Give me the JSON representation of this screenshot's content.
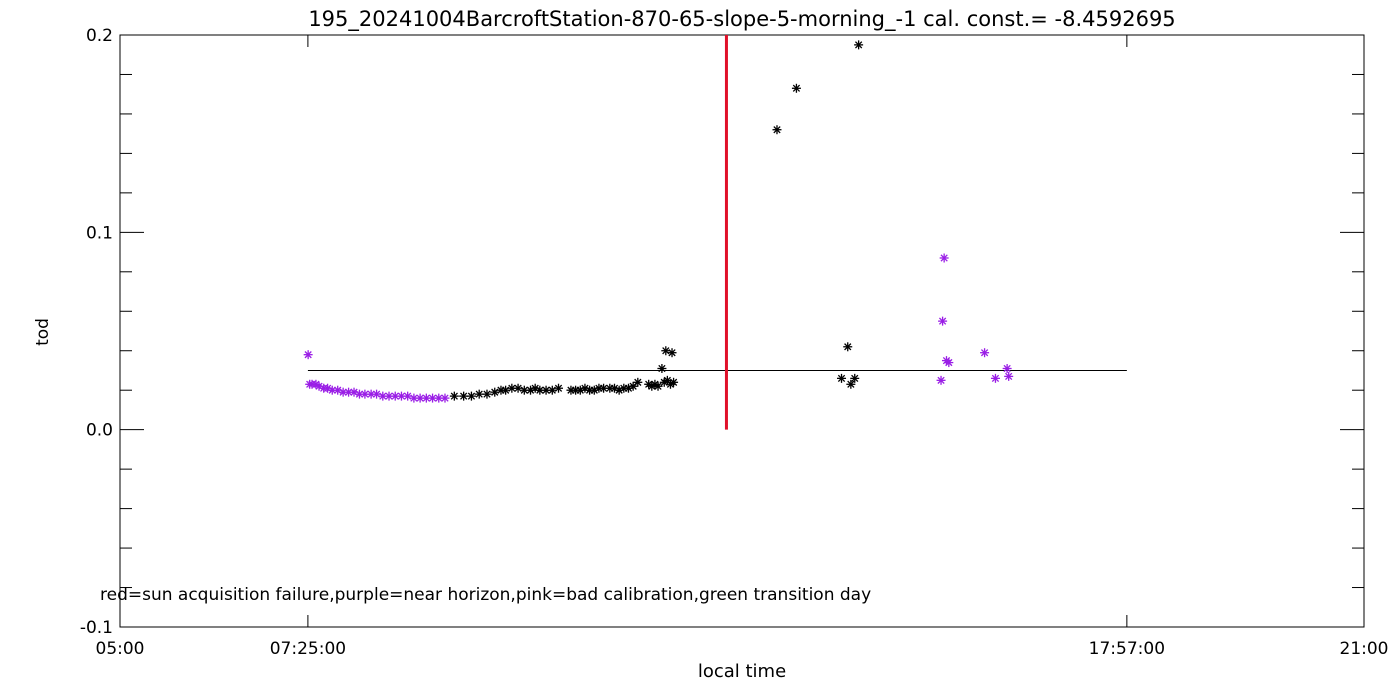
{
  "chart_data": {
    "type": "scatter",
    "title": "195_20241004BarcroftStation-870-65-slope-5-morning_-1 cal. const.= -8.4592695",
    "xlabel": "local time",
    "ylabel": "tod",
    "x_unit": "hours",
    "xlim": [
      5.0,
      21.0
    ],
    "ylim": [
      -0.1,
      0.2
    ],
    "x_tick_labels": [
      "05:00",
      "07:25:00",
      "17:57:00",
      "21:00"
    ],
    "x_tick_values": [
      5.0,
      7.4167,
      17.95,
      21.0
    ],
    "y_tick_labels": [
      "-0.1",
      "0.0",
      "0.1",
      "0.2"
    ],
    "y_tick_values": [
      -0.1,
      0.0,
      0.1,
      0.2
    ],
    "legend_text": "red=sun acquisition failure,purple=near horizon,pink=bad calibration,green transition day",
    "reference_line": {
      "y": 0.03,
      "x_start": 7.4167,
      "x_end": 17.95,
      "color": "#000000"
    },
    "marker_line": {
      "x": 12.8,
      "y_start": 0.0,
      "y_end": 0.2,
      "color": "#e0102a"
    },
    "colors": {
      "black": "#000000",
      "purple": "#9a1ee6"
    },
    "series": [
      {
        "color_key": "purple",
        "points": [
          [
            7.42,
            0.038
          ],
          [
            7.44,
            0.023
          ],
          [
            7.47,
            0.023
          ],
          [
            7.52,
            0.023
          ],
          [
            7.56,
            0.022
          ],
          [
            7.62,
            0.021
          ],
          [
            7.67,
            0.021
          ],
          [
            7.73,
            0.02
          ],
          [
            7.8,
            0.02
          ],
          [
            7.87,
            0.019
          ],
          [
            7.94,
            0.019
          ],
          [
            8.01,
            0.019
          ],
          [
            8.08,
            0.018
          ],
          [
            8.15,
            0.018
          ],
          [
            8.23,
            0.018
          ],
          [
            8.3,
            0.018
          ],
          [
            8.38,
            0.017
          ],
          [
            8.46,
            0.017
          ],
          [
            8.54,
            0.017
          ],
          [
            8.62,
            0.017
          ],
          [
            8.7,
            0.017
          ],
          [
            8.78,
            0.016
          ],
          [
            8.86,
            0.016
          ],
          [
            8.94,
            0.016
          ],
          [
            9.02,
            0.016
          ],
          [
            9.1,
            0.016
          ],
          [
            9.18,
            0.016
          ],
          [
            15.56,
            0.025
          ],
          [
            15.58,
            0.055
          ],
          [
            15.6,
            0.087
          ],
          [
            15.63,
            0.035
          ],
          [
            15.66,
            0.034
          ],
          [
            16.12,
            0.039
          ],
          [
            16.26,
            0.026
          ],
          [
            16.41,
            0.031
          ],
          [
            16.43,
            0.027
          ]
        ]
      },
      {
        "color_key": "black",
        "points": [
          [
            9.3,
            0.017
          ],
          [
            9.42,
            0.017
          ],
          [
            9.52,
            0.017
          ],
          [
            9.62,
            0.018
          ],
          [
            9.72,
            0.018
          ],
          [
            9.82,
            0.019
          ],
          [
            9.9,
            0.02
          ],
          [
            9.96,
            0.02
          ],
          [
            10.04,
            0.021
          ],
          [
            10.12,
            0.021
          ],
          [
            10.2,
            0.02
          ],
          [
            10.28,
            0.02
          ],
          [
            10.34,
            0.021
          ],
          [
            10.4,
            0.02
          ],
          [
            10.48,
            0.02
          ],
          [
            10.56,
            0.02
          ],
          [
            10.64,
            0.021
          ],
          [
            10.8,
            0.02
          ],
          [
            10.86,
            0.02
          ],
          [
            10.92,
            0.02
          ],
          [
            10.98,
            0.021
          ],
          [
            11.04,
            0.02
          ],
          [
            11.1,
            0.02
          ],
          [
            11.16,
            0.021
          ],
          [
            11.22,
            0.021
          ],
          [
            11.3,
            0.021
          ],
          [
            11.36,
            0.021
          ],
          [
            11.42,
            0.02
          ],
          [
            11.48,
            0.021
          ],
          [
            11.54,
            0.021
          ],
          [
            11.6,
            0.022
          ],
          [
            11.66,
            0.024
          ],
          [
            11.8,
            0.023
          ],
          [
            11.84,
            0.022
          ],
          [
            11.88,
            0.023
          ],
          [
            11.92,
            0.022
          ],
          [
            11.97,
            0.031
          ],
          [
            12.0,
            0.024
          ],
          [
            12.04,
            0.025
          ],
          [
            12.08,
            0.023
          ],
          [
            12.12,
            0.024
          ],
          [
            12.02,
            0.04
          ],
          [
            12.1,
            0.039
          ],
          [
            13.45,
            0.152
          ],
          [
            13.7,
            0.173
          ],
          [
            14.28,
            0.026
          ],
          [
            14.36,
            0.042
          ],
          [
            14.4,
            0.023
          ],
          [
            14.45,
            0.026
          ],
          [
            14.5,
            0.195
          ]
        ]
      }
    ]
  }
}
